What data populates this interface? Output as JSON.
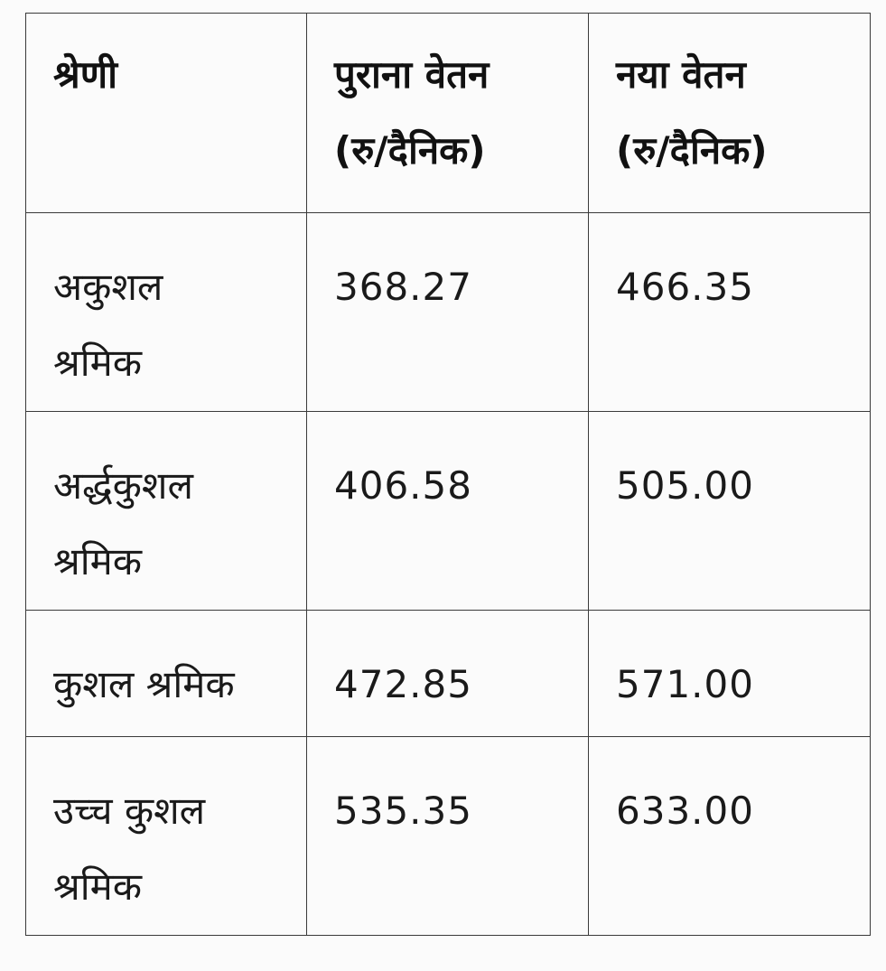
{
  "table": {
    "headers": [
      {
        "line1": "श्रेणी",
        "line2": ""
      },
      {
        "line1": "पुराना वेतन",
        "line2": "(रु/दैनिक)"
      },
      {
        "line1": "नया वेतन",
        "line2": "(रु/दैनिक)"
      }
    ],
    "rows": [
      {
        "category_line1": "अकुशल",
        "category_line2": "श्रमिक",
        "old_wage": "368.27",
        "new_wage": "466.35"
      },
      {
        "category_line1": "अर्द्धकुशल",
        "category_line2": "श्रमिक",
        "old_wage": "406.58",
        "new_wage": "505.00"
      },
      {
        "category_line1": "कुशल श्रमिक",
        "category_line2": "",
        "old_wage": "472.85",
        "new_wage": "571.00"
      },
      {
        "category_line1": "उच्च कुशल",
        "category_line2": "श्रमिक",
        "old_wage": "535.35",
        "new_wage": "633.00"
      }
    ]
  }
}
